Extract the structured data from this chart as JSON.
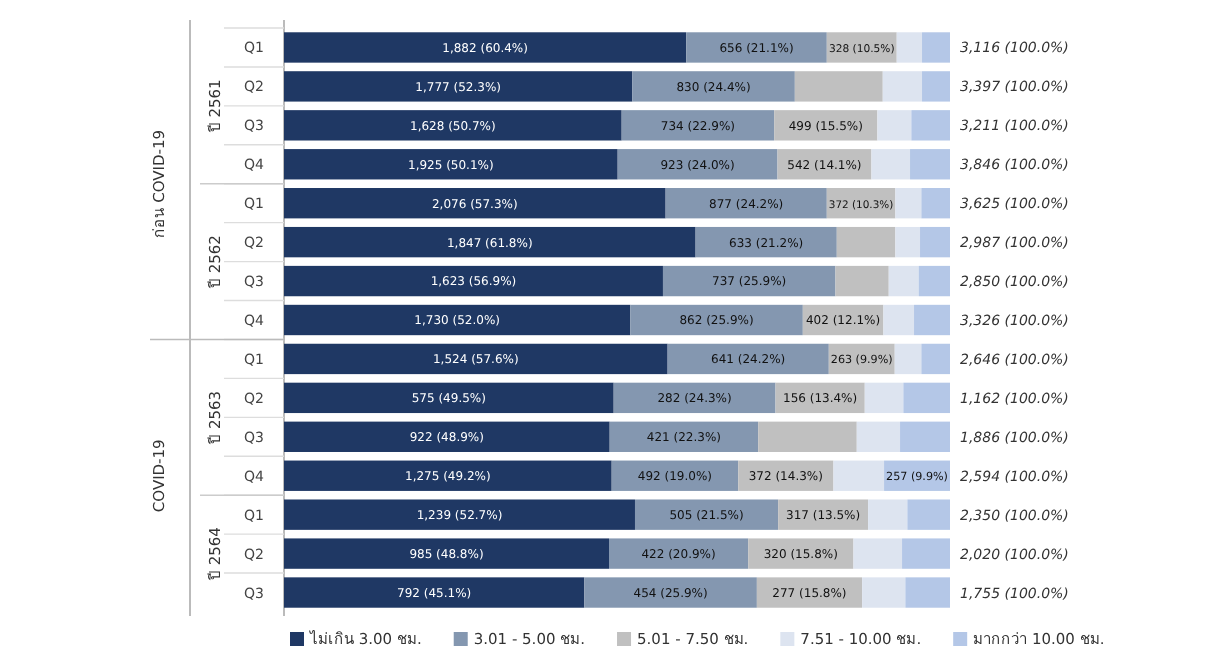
{
  "chart_data": {
    "type": "bar",
    "orientation": "horizontal",
    "stacked": true,
    "categories": [
      "Q1",
      "Q2",
      "Q3",
      "Q4",
      "Q1",
      "Q2",
      "Q3",
      "Q4",
      "Q1",
      "Q2",
      "Q3",
      "Q4",
      "Q1",
      "Q2",
      "Q3"
    ],
    "xlim": [
      0,
      100
    ],
    "tick_labels": "y",
    "legend": "bottom",
    "series": [
      {
        "name": "ไม่เกิน 3.00 ชม.",
        "color": "#1f3864",
        "values": [
          60.4,
          52.3,
          50.7,
          50.1,
          57.3,
          61.8,
          56.9,
          52.0,
          57.6,
          49.5,
          48.9,
          49.2,
          52.7,
          48.8,
          45.1
        ],
        "value_labels": [
          "1,882 (60.4%)",
          "1,777 (52.3%)",
          "1,628 (50.7%)",
          "1,925 (50.1%)",
          "2,076 (57.3%)",
          "1,847 (61.8%)",
          "1,623 (56.9%)",
          "1,730 (52.0%)",
          "1,524 (57.6%)",
          "575 (49.5%)",
          "922 (48.9%)",
          "1,275 (49.2%)",
          "1,239 (52.7%)",
          "985 (48.8%)",
          "792 (45.1%)"
        ]
      },
      {
        "name": "3.01 - 5.00 ชม.",
        "color": "#8497b0",
        "values": [
          21.1,
          24.4,
          22.9,
          24.0,
          24.2,
          21.2,
          25.9,
          25.9,
          24.2,
          24.3,
          22.3,
          19.0,
          21.5,
          20.9,
          25.9
        ],
        "value_labels": [
          "656 (21.1%)",
          "830 (24.4%)",
          "734 (22.9%)",
          "923 (24.0%)",
          "877 (24.2%)",
          "633 (21.2%)",
          "737 (25.9%)",
          "862 (25.9%)",
          "641 (24.2%)",
          "282 (24.3%)",
          "421 (22.3%)",
          "492 (19.0%)",
          "505 (21.5%)",
          "422 (20.9%)",
          "454 (25.9%)"
        ]
      },
      {
        "name": "5.01 - 7.50 ชม.",
        "color": "#c0c0c0",
        "values": [
          10.5,
          13.2,
          15.5,
          14.1,
          10.3,
          8.8,
          8.0,
          12.1,
          9.9,
          13.4,
          14.8,
          14.3,
          13.5,
          15.8,
          15.8
        ],
        "value_labels": [
          "328 (10.5%)",
          null,
          "499 (15.5%)",
          "542 (14.1%)",
          "372 (10.3%)",
          null,
          null,
          "402 (12.1%)",
          "263 (9.9%)",
          "156 (13.4%)",
          null,
          "372 (14.3%)",
          "317 (13.5%)",
          "320 (15.8%)",
          "277 (15.8%)"
        ]
      },
      {
        "name": "7.51 - 10.00 ชม.",
        "color": "#dde4f0",
        "values": [
          3.8,
          5.9,
          5.1,
          5.8,
          3.9,
          3.7,
          4.5,
          4.6,
          4.0,
          5.8,
          6.5,
          7.6,
          5.9,
          7.3,
          6.5
        ]
      },
      {
        "name": "มากกว่า 10.00 ชม.",
        "color": "#b4c7e7",
        "values": [
          4.2,
          4.2,
          5.8,
          6.0,
          4.3,
          4.5,
          4.7,
          5.4,
          4.3,
          7.0,
          7.5,
          9.9,
          6.4,
          7.2,
          6.7
        ],
        "value_labels": [
          null,
          null,
          null,
          null,
          null,
          null,
          null,
          null,
          null,
          null,
          null,
          "257 (9.9%)",
          null,
          null,
          null
        ]
      }
    ],
    "totals": [
      "3,116 (100.0%)",
      "3,397 (100.0%)",
      "3,211 (100.0%)",
      "3,846 (100.0%)",
      "3,625 (100.0%)",
      "2,987 (100.0%)",
      "2,850 (100.0%)",
      "3,326 (100.0%)",
      "2,646 (100.0%)",
      "1,162 (100.0%)",
      "1,886 (100.0%)",
      "2,594 (100.0%)",
      "2,350 (100.0%)",
      "2,020 (100.0%)",
      "1,755 (100.0%)"
    ],
    "annotations": [
      "ปี 2561",
      "ปี 2562",
      "ปี 2563",
      "ปี 2564",
      "ก่อน COVID-19",
      "COVID-19"
    ]
  }
}
